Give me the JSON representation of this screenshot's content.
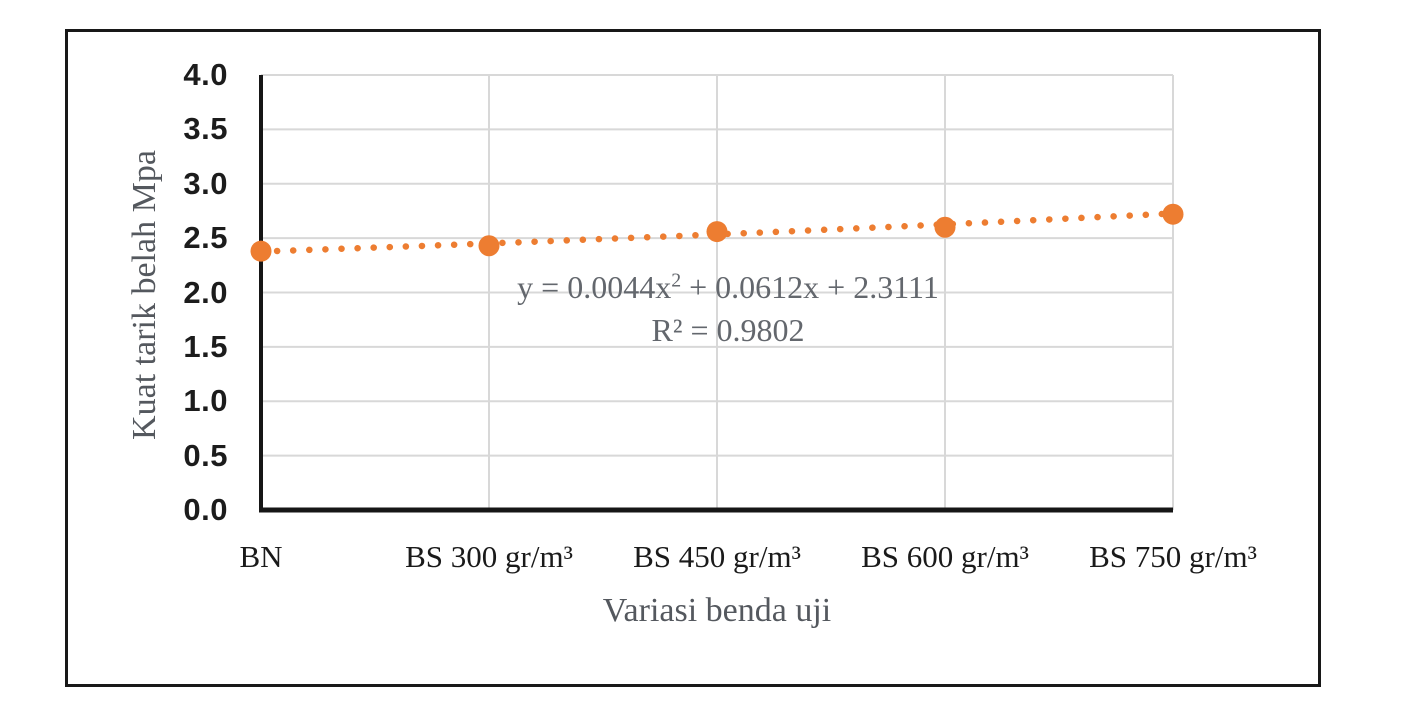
{
  "chart_data": {
    "type": "scatter",
    "categories": [
      "BN",
      "BS 300 gr/m³",
      "BS 450 gr/m³",
      "BS 600 gr/m³",
      "BS 750 gr/m³"
    ],
    "series": [
      {
        "name": "Kuat tarik belah",
        "values": [
          2.38,
          2.43,
          2.56,
          2.6,
          2.72
        ]
      }
    ],
    "xlabel": "Variasi benda uji",
    "ylabel": "Kuat tarik belah Mpa",
    "ylim": [
      0.0,
      4.0
    ],
    "ytick_step": 0.5,
    "yticks": [
      "0.0",
      "0.5",
      "1.0",
      "1.5",
      "2.0",
      "2.5",
      "3.0",
      "3.5",
      "4.0"
    ],
    "grid": true,
    "legend": "none",
    "trendline": {
      "kind": "polynomial-order-2",
      "a": 0.0044,
      "b": 0.0612,
      "c": 2.3111,
      "equation_parts": [
        {
          "text": "y = 0.0044x"
        },
        {
          "text": "2",
          "sup": true
        },
        {
          "text": " + 0.0612x + 2.3111"
        }
      ],
      "r_squared": "R² = 0.9802",
      "style": "dotted"
    },
    "colors": {
      "marker": "#ED7D31",
      "trendline": "#ED7D31",
      "gridline": "#D8D8D8",
      "axis": "#161616",
      "tick_label": "#1c1c1c",
      "category_label": "#1a1a1a",
      "axis_title": "#54585e",
      "equation_text": "#63676d",
      "frame_border": "#181818"
    }
  }
}
